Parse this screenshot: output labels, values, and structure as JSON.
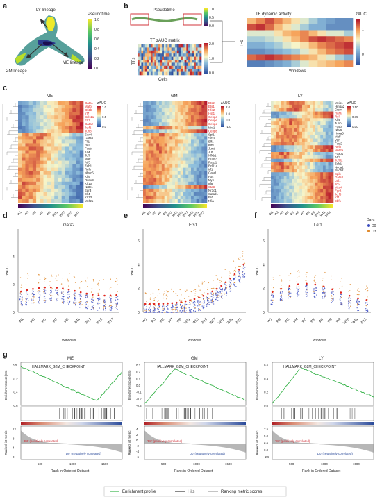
{
  "panels": {
    "a": "a",
    "b": "b",
    "c": "c",
    "d": "d",
    "e": "e",
    "f": "f",
    "g": "g"
  },
  "panel_a": {
    "lineages": [
      "LY lineage",
      "GM lineage",
      "ME lineage"
    ],
    "legend_title": "Pseudotime",
    "legend_ticks": [
      "1.0",
      "0.8",
      "0.6",
      "0.4",
      "0.2",
      "0.0"
    ]
  },
  "panel_b": {
    "pseudotime_label": "Pseudotime",
    "ellipsis": "...",
    "matrix_title": "TF zAUC matrix",
    "ylabel": "TFs",
    "xlabel": "Cells",
    "matrix_ticks": [
      "2.0",
      "1.0",
      "0.0"
    ],
    "bar_ticks": [
      "1.0",
      "0.5",
      "0.0"
    ],
    "dynamic_title": "TF dynamic activity",
    "dynamic_legend": "zAUC",
    "dynamic_ticks": [
      "1",
      "0"
    ],
    "dynamic_ylabel": "TFs",
    "dynamic_xlabel": "Windows"
  },
  "panel_c": {
    "heatmaps": [
      {
        "title": "ME",
        "legend": "zAUC",
        "ticks": [
          "1.0",
          "0.5",
          "0.0"
        ],
        "genes": [
          "Gata1",
          "Mafb",
          "Gfi1b",
          "Irf7",
          "Bcl11a",
          "Elf1",
          "Gata2",
          "Ikzf2",
          "Junb",
          "Sox4",
          "Gata3",
          "Fli1",
          "Rel",
          "Fosb",
          "Klf4",
          "Tcf7",
          "Maff",
          "Atf3",
          "Zeb1",
          "Relb",
          "Nfatc5",
          "Klf9",
          "Runx3",
          "Klf10",
          "Nr3c1",
          "Egr3",
          "Elf4",
          "Klf13",
          "Mef2a"
        ],
        "red_count": 9,
        "windows": [
          "W1",
          "W3",
          "W5",
          "W7",
          "W9",
          "W11",
          "W13",
          "W15",
          "W17"
        ]
      },
      {
        "title": "GM",
        "legend": "zAUC",
        "ticks": [
          "2.0",
          "1.0",
          "0.0",
          "-1.0"
        ],
        "genes": [
          "Ets2",
          "Ets1",
          "Nfe2",
          "Hsf1",
          "Cebpa",
          "Cebpe",
          "Cebpd",
          "Mxi1",
          "Cebpb",
          "Spi1",
          "Sox4",
          "Elf1",
          "Klf9",
          "Jund",
          "Jun",
          "Nfkb1",
          "Runx3",
          "Foxp1",
          "Bcl11a",
          "Irf1",
          "Gata1",
          "Fos",
          "Myc",
          "Irf8",
          "Stat1",
          "Nr3c1",
          "Satad1",
          "Fli1",
          "Nfia"
        ],
        "red_set": [
          0,
          1,
          2,
          3,
          4,
          5,
          6,
          8,
          24
        ],
        "windows": [
          "W1",
          "W3",
          "W5",
          "W7",
          "W9",
          "W11",
          "W13",
          "W15",
          "W17",
          "W19",
          "W21",
          "W23"
        ]
      },
      {
        "title": "LY",
        "legend": "zAUC",
        "ticks": [
          "1.50",
          "0.75",
          "0.00"
        ],
        "genes": [
          "Meis1",
          "Hmga2",
          "Crem",
          "Rara",
          "Rel",
          "Klf4",
          "Junb",
          "Fosb",
          "Nfat5",
          "Hoxa5",
          "Maff",
          "Vdr",
          "Fosl2",
          "Relb",
          "Mef2a",
          "Foxo1",
          "Atf3",
          "Tcf7l2",
          "Zeb1",
          "Ncoa1",
          "Bach2",
          "Spib",
          "Gata3",
          "Lef1",
          "Tcf7",
          "Mxd4",
          "Egr3",
          "Ikzf3",
          "Irf4",
          "Ebf1"
        ],
        "red_set": [
          3,
          4,
          13,
          14,
          17,
          21,
          22,
          23,
          24,
          25,
          26,
          27,
          28,
          29
        ],
        "windows": [
          "W1",
          "W2",
          "W3",
          "W4",
          "W5",
          "W6",
          "W7",
          "W8",
          "W9",
          "W10",
          "W11",
          "W12"
        ]
      }
    ]
  },
  "panel_d": {
    "title": "Gata2",
    "ylabel": "zAUC",
    "xlabel": "Windows",
    "yticks": [
      "4",
      "2",
      "0"
    ],
    "windows": [
      "W1",
      "W3",
      "W5",
      "W7",
      "W9",
      "W11",
      "W13",
      "W15",
      "W17"
    ]
  },
  "panel_e": {
    "title": "Ets1",
    "ylabel": "zAUC",
    "xlabel": "Windows",
    "yticks": [
      "6",
      "4",
      "2",
      "0"
    ],
    "windows": [
      "W1",
      "W3",
      "W5",
      "W7",
      "W9",
      "W11",
      "W13",
      "W15",
      "W17",
      "W19",
      "W21",
      "W23"
    ]
  },
  "panel_f": {
    "title": "Lef1",
    "ylabel": "zAUC",
    "xlabel": "Windows",
    "yticks": [
      "6",
      "4",
      "2",
      "0"
    ],
    "windows": [
      "W1",
      "W2",
      "W3",
      "W4",
      "W5",
      "W6",
      "W7",
      "W8",
      "W9",
      "W10",
      "W11",
      "W12"
    ],
    "legend_title": "Days",
    "legend_items": [
      {
        "label": "D0",
        "color": "#3b4cc0"
      },
      {
        "label": "D3",
        "color": "#e08a2c"
      }
    ]
  },
  "panel_g": {
    "ylabel_top": "Enrichment score(ES)",
    "ylabel_bottom": "Ranked list metric",
    "xlabel": "Rank in Ordered Dataset",
    "gene_set": "HALLMARK_G2M_CHECKPOINT",
    "pos_label": "'D3' (positively correlated)",
    "neg_label": "'D0' (negatively correlated)",
    "plots": [
      {
        "title": "ME",
        "yticks": [
          "0.0",
          "-0.2",
          "-0.4",
          "-0.6"
        ],
        "bottom_ticks": [
          "12",
          "8",
          "4",
          "0"
        ],
        "xticks": [
          "500",
          "1000",
          "1500"
        ]
      },
      {
        "title": "GM",
        "yticks": [
          "0.3",
          "0.2",
          "0.1",
          "0.0",
          "-0.1",
          "-0.2",
          "-0.3"
        ],
        "bottom_ticks": [
          "4",
          "2",
          "0",
          "-2",
          "-4",
          "-6"
        ],
        "xticks": [
          "500",
          "1000",
          "1500"
        ]
      },
      {
        "title": "LY",
        "yticks": [
          "0.6",
          "0.4",
          "0.2",
          "0.0"
        ],
        "bottom_ticks": [
          "7.5",
          "5.0",
          "2.5",
          "0.0",
          "-2.5"
        ],
        "xticks": [
          "500",
          "1000",
          "1500"
        ]
      }
    ],
    "legend": [
      "Enrichment profile",
      "Hits",
      "Ranking metric scores"
    ]
  },
  "colors": {
    "enrichment": "#37b34a",
    "d0": "#3b4cc0",
    "d3": "#e08a2c",
    "red_label": "#e0261f"
  }
}
